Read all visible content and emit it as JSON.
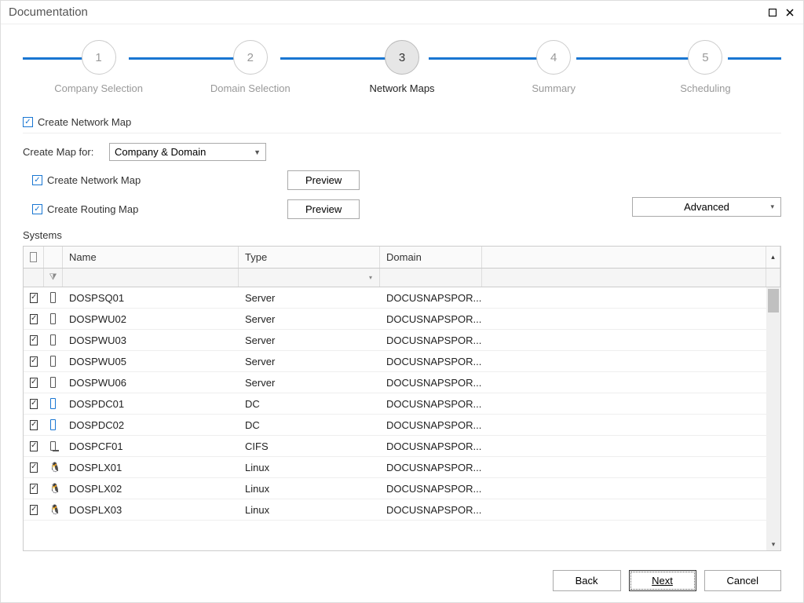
{
  "window": {
    "title": "Documentation"
  },
  "stepper": {
    "steps": [
      {
        "num": "1",
        "label": "Company Selection",
        "active": false
      },
      {
        "num": "2",
        "label": "Domain Selection",
        "active": false
      },
      {
        "num": "3",
        "label": "Network Maps",
        "active": true
      },
      {
        "num": "4",
        "label": "Summary",
        "active": false
      },
      {
        "num": "5",
        "label": "Scheduling",
        "active": false
      }
    ]
  },
  "section": {
    "header": "Create Network Map",
    "header_checked": true,
    "create_map_for_label": "Create Map for:",
    "create_map_for_value": "Company & Domain",
    "create_network_map_label": "Create Network Map",
    "create_network_map_checked": true,
    "create_routing_map_label": "Create Routing Map",
    "create_routing_map_checked": true,
    "preview_label": "Preview",
    "advanced_label": "Advanced"
  },
  "grid": {
    "systems_label": "Systems",
    "columns": {
      "name": "Name",
      "type": "Type",
      "domain": "Domain"
    },
    "rows": [
      {
        "checked": true,
        "icon": "server",
        "name": "DOSPSQ01",
        "type": "Server",
        "domain": "DOCUSNAPSPOR..."
      },
      {
        "checked": true,
        "icon": "server",
        "name": "DOSPWU02",
        "type": "Server",
        "domain": "DOCUSNAPSPOR..."
      },
      {
        "checked": true,
        "icon": "server",
        "name": "DOSPWU03",
        "type": "Server",
        "domain": "DOCUSNAPSPOR..."
      },
      {
        "checked": true,
        "icon": "server",
        "name": "DOSPWU05",
        "type": "Server",
        "domain": "DOCUSNAPSPOR..."
      },
      {
        "checked": true,
        "icon": "server",
        "name": "DOSPWU06",
        "type": "Server",
        "domain": "DOCUSNAPSPOR..."
      },
      {
        "checked": true,
        "icon": "dc",
        "name": "DOSPDC01",
        "type": "DC",
        "domain": "DOCUSNAPSPOR..."
      },
      {
        "checked": true,
        "icon": "dc",
        "name": "DOSPDC02",
        "type": "DC",
        "domain": "DOCUSNAPSPOR..."
      },
      {
        "checked": true,
        "icon": "cifs",
        "name": "DOSPCF01",
        "type": "CIFS",
        "domain": "DOCUSNAPSPOR..."
      },
      {
        "checked": true,
        "icon": "linux",
        "name": "DOSPLX01",
        "type": "Linux",
        "domain": "DOCUSNAPSPOR..."
      },
      {
        "checked": true,
        "icon": "linux",
        "name": "DOSPLX02",
        "type": "Linux",
        "domain": "DOCUSNAPSPOR..."
      },
      {
        "checked": true,
        "icon": "linux",
        "name": "DOSPLX03",
        "type": "Linux",
        "domain": "DOCUSNAPSPOR..."
      }
    ]
  },
  "footer": {
    "back": "Back",
    "next": "Next",
    "cancel": "Cancel"
  },
  "colors": {
    "primary": "#1976d2",
    "text": "#333333",
    "muted": "#999999",
    "border": "#cccccc"
  }
}
